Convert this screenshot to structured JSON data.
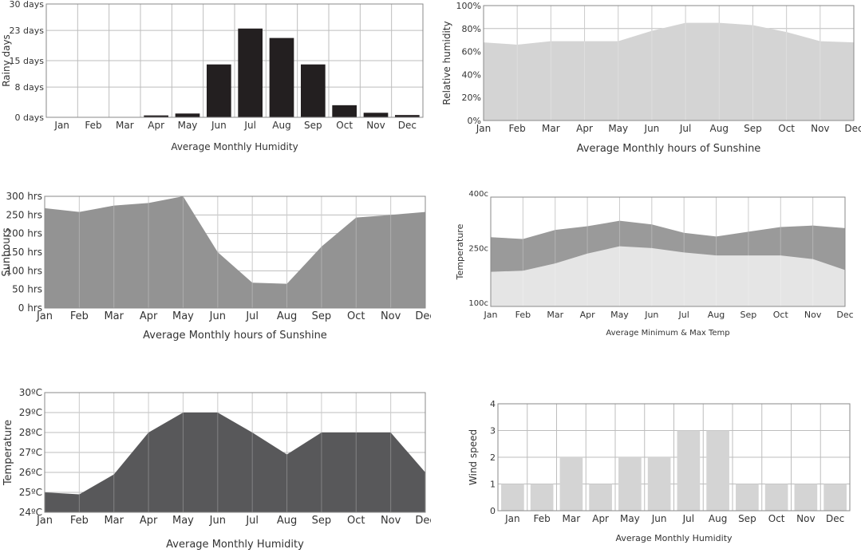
{
  "chart_data": [
    {
      "type": "bar",
      "title": "",
      "caption": "Average Monthly Humidity",
      "ylabel": "Rainy days",
      "ylim": [
        0,
        30
      ],
      "yticks": [
        0,
        8,
        15,
        23,
        30
      ],
      "ytick_labels": [
        "0 days",
        "8 days",
        "15 days",
        "23 days",
        "30 days"
      ],
      "categories": [
        "Jan",
        "Feb",
        "Mar",
        "Apr",
        "May",
        "Jun",
        "Jul",
        "Aug",
        "Sep",
        "Oct",
        "Nov",
        "Dec"
      ],
      "values": [
        0,
        0,
        0,
        0.5,
        1,
        14,
        23.5,
        21,
        14,
        3.2,
        1.2,
        0.6
      ],
      "color": "#231f20",
      "grid": true
    },
    {
      "type": "area",
      "title": "",
      "caption": "Average Monthly hours of Sunshine",
      "ylabel": "Relative humidity",
      "ylim": [
        0,
        100
      ],
      "yticks": [
        0,
        20,
        40,
        60,
        80,
        100
      ],
      "ytick_labels": [
        "0%",
        "20%",
        "40%",
        "60%",
        "80%",
        "100%"
      ],
      "categories": [
        "Jan",
        "Feb",
        "Mar",
        "Apr",
        "May",
        "Jun",
        "Jul",
        "Aug",
        "Sep",
        "Oct",
        "Nov",
        "Dec"
      ],
      "values": [
        68,
        66,
        69,
        69,
        69,
        78,
        85,
        85,
        83,
        77,
        69,
        68
      ],
      "color": "#d4d4d4",
      "grid": true
    },
    {
      "type": "area",
      "title": "",
      "caption": "Average Monthly hours of Sunshine",
      "ylabel": "Sunhours",
      "ylim": [
        0,
        300
      ],
      "yticks": [
        0,
        50,
        100,
        150,
        200,
        250,
        300
      ],
      "ytick_labels": [
        "0 hrs",
        "50 hrs",
        "100 hrs",
        "150 hrs",
        "200 hrs",
        "250 hrs",
        "300 hrs"
      ],
      "categories": [
        "Jan",
        "Feb",
        "Mar",
        "Apr",
        "May",
        "Jun",
        "Jul",
        "Aug",
        "Sep",
        "Oct",
        "Nov",
        "Dec"
      ],
      "values": [
        268,
        258,
        275,
        282,
        300,
        150,
        68,
        65,
        165,
        243,
        250,
        258
      ],
      "color": "#939393",
      "grid": true
    },
    {
      "type": "area",
      "title": "",
      "caption": "Average Minimum & Max Temp",
      "ylabel": "Temperature",
      "ylim": [
        100,
        400
      ],
      "yticks": [
        100,
        250,
        400
      ],
      "ytick_labels": [
        "100c",
        "250c",
        "400c"
      ],
      "categories": [
        "Jan",
        "Feb",
        "Mar",
        "Apr",
        "May",
        "Jun",
        "Jul",
        "Aug",
        "Sep",
        "Oct",
        "Nov",
        "Dec"
      ],
      "series": [
        {
          "values": [
            290,
            285,
            310,
            320,
            335,
            325,
            302,
            292,
            305,
            318,
            322,
            315
          ],
          "color": "#9a9a9a"
        },
        {
          "values": [
            195,
            198,
            218,
            245,
            265,
            260,
            248,
            240,
            240,
            240,
            230,
            200
          ],
          "color": "#e5e5e5"
        }
      ],
      "grid": true
    },
    {
      "type": "area",
      "title": "",
      "caption": "Average Monthly Humidity",
      "ylabel": "Temperature",
      "ylim": [
        24,
        30
      ],
      "yticks": [
        24,
        25,
        26,
        27,
        28,
        29,
        30
      ],
      "ytick_labels": [
        "24ºC",
        "25ºC",
        "26ºC",
        "27ºC",
        "28ºC",
        "29ºC",
        "30ºC"
      ],
      "categories": [
        "Jan",
        "Feb",
        "Mar",
        "Apr",
        "May",
        "Jun",
        "Jul",
        "Aug",
        "Sep",
        "Oct",
        "Nov",
        "Dec"
      ],
      "values": [
        25.0,
        24.9,
        25.9,
        28.0,
        29.0,
        29.0,
        28.0,
        26.9,
        28.0,
        28.0,
        28.0,
        26.0
      ],
      "color": "#58585a",
      "grid": true
    },
    {
      "type": "bar",
      "title": "",
      "caption": "Average Monthly Humidity",
      "ylabel": "Wind speed",
      "ylim": [
        0,
        4
      ],
      "yticks": [
        0,
        1,
        2,
        3,
        4
      ],
      "ytick_labels": [
        "0",
        "1",
        "2",
        "3",
        "4"
      ],
      "categories": [
        "Jan",
        "Feb",
        "Mar",
        "Apr",
        "May",
        "Jun",
        "Jul",
        "Aug",
        "Sep",
        "Oct",
        "Nov",
        "Dec"
      ],
      "values": [
        1,
        1,
        2,
        1,
        2,
        2,
        3,
        3,
        1,
        1,
        1,
        1
      ],
      "color": "#d4d4d4",
      "grid": true
    }
  ]
}
